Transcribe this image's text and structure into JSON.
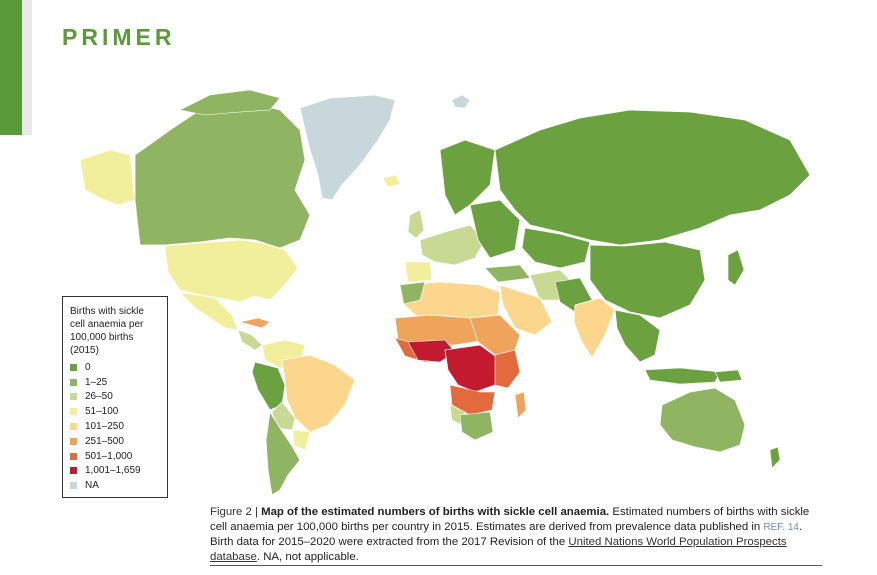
{
  "header": {
    "title": "PRIMER"
  },
  "colors": {
    "accent": "#5a9a3a",
    "c0": "#6ba13f",
    "c1": "#8fb562",
    "c2": "#c7d992",
    "c3": "#f1ee9c",
    "c4": "#fbd68c",
    "c5": "#f0a35b",
    "c6": "#e26a3d",
    "c7": "#c31a2f",
    "na": "#c8d7dc"
  },
  "legend": {
    "title": "Births with sickle cell anaemia per 100,000 births (2015)",
    "items": [
      {
        "label": "0",
        "color": "#6ba13f"
      },
      {
        "label": "1–25",
        "color": "#8fb562"
      },
      {
        "label": "26–50",
        "color": "#c7d992"
      },
      {
        "label": "51–100",
        "color": "#f1ee9c"
      },
      {
        "label": "101–250",
        "color": "#fbd68c"
      },
      {
        "label": "251–500",
        "color": "#f0a35b"
      },
      {
        "label": "501–1,000",
        "color": "#e26a3d"
      },
      {
        "label": "1,001–1,659",
        "color": "#c31a2f"
      },
      {
        "label": "NA",
        "color": "#c8d7dc"
      }
    ]
  },
  "caption": {
    "fig_label": "Figure 2 | ",
    "fig_title": "Map of the estimated numbers of births with sickle cell anaemia.",
    "text1": " Estimated numbers of births with sickle cell anaemia per 100,000 births per country in 2015. Estimates are derived from prevalence data published in ",
    "ref": "REF. 14",
    "text2": ". Birth data for 2015–2020 were extracted from the 2017 Revision of the ",
    "link": "United Nations World Population Prospects database",
    "text3": ". NA, not applicable."
  }
}
